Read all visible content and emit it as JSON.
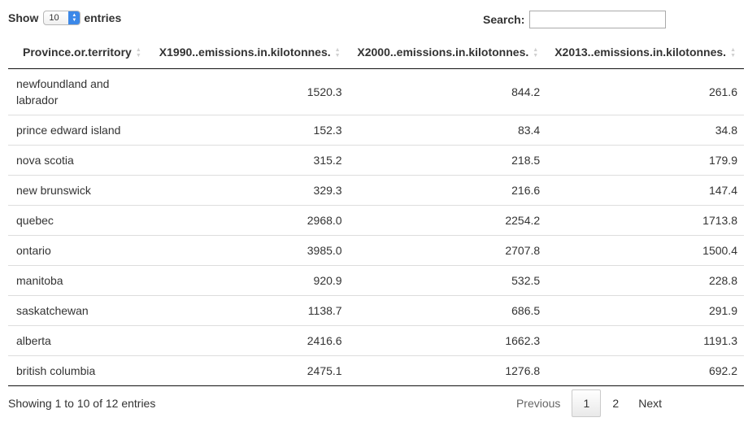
{
  "length": {
    "show_label": "Show",
    "value": "10",
    "entries_label": "entries"
  },
  "search": {
    "label": "Search:",
    "value": ""
  },
  "table": {
    "headers": [
      "Province.or.territory",
      "X1990..emissions.in.kilotonnes.",
      "X2000..emissions.in.kilotonnes.",
      "X2013..emissions.in.kilotonnes."
    ],
    "rows": [
      [
        "newfoundland and labrador",
        "1520.3",
        "844.2",
        "261.6"
      ],
      [
        "prince edward island",
        "152.3",
        "83.4",
        "34.8"
      ],
      [
        "nova scotia",
        "315.2",
        "218.5",
        "179.9"
      ],
      [
        "new brunswick",
        "329.3",
        "216.6",
        "147.4"
      ],
      [
        "quebec",
        "2968.0",
        "2254.2",
        "1713.8"
      ],
      [
        "ontario",
        "3985.0",
        "2707.8",
        "1500.4"
      ],
      [
        "manitoba",
        "920.9",
        "532.5",
        "228.8"
      ],
      [
        "saskatchewan",
        "1138.7",
        "686.5",
        "291.9"
      ],
      [
        "alberta",
        "2416.6",
        "1662.3",
        "1191.3"
      ],
      [
        "british columbia",
        "2475.1",
        "1276.8",
        "692.2"
      ]
    ]
  },
  "info": "Showing 1 to 10 of 12 entries",
  "pagination": {
    "previous": "Previous",
    "pages": [
      "1",
      "2"
    ],
    "next": "Next"
  }
}
